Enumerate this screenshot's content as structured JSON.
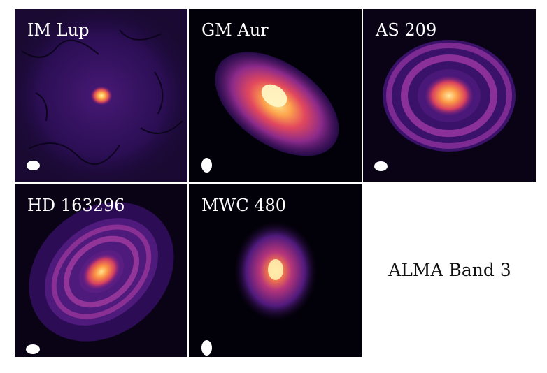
{
  "panels": [
    {
      "name": "IM Lup"
    },
    {
      "name": "GM Aur"
    },
    {
      "name": "AS 209"
    },
    {
      "name": "HD 163296"
    },
    {
      "name": "MWC 480"
    }
  ],
  "caption": "ALMA Band 3",
  "colors": {
    "background": "#020008",
    "colormap": [
      "#000004",
      "#3b0f70",
      "#8c2981",
      "#de4968",
      "#fe9f6d",
      "#fcfdbf"
    ]
  }
}
